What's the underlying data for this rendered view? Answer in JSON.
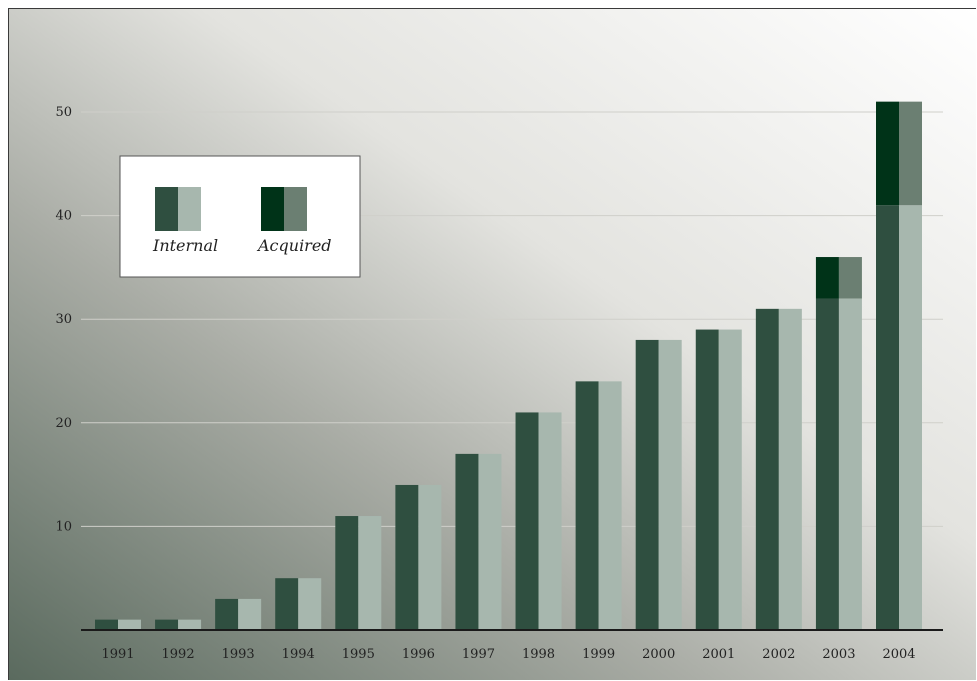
{
  "chart_data": {
    "type": "bar",
    "title": "",
    "xlabel": "",
    "ylabel": "",
    "ylim": [
      0,
      50
    ],
    "yticks": [
      10,
      20,
      30,
      40,
      50
    ],
    "grid": true,
    "legend_position": "top-left",
    "categories": [
      "1991",
      "1992",
      "1993",
      "1994",
      "1995",
      "1996",
      "1997",
      "1998",
      "1999",
      "2000",
      "2001",
      "2002",
      "2003",
      "2004"
    ],
    "series": [
      {
        "name": "Internal",
        "values": [
          1,
          1,
          3,
          5,
          11,
          14,
          17,
          21,
          24,
          28,
          29,
          31,
          32,
          41
        ]
      },
      {
        "name": "Acquired",
        "values": [
          0,
          0,
          0,
          0,
          0,
          0,
          0,
          0,
          0,
          0,
          0,
          0,
          4,
          10
        ]
      }
    ],
    "colors": {
      "internal_front": "#2f4f40",
      "internal_side": "#a7b7ae",
      "acquired_front": "#003318",
      "acquired_side": "#6b7f72",
      "gradient_dark": "#5a6a5e",
      "gradient_light": "#ffffff",
      "axis": "#1a1a1a",
      "grid": "#cfcfca"
    }
  }
}
